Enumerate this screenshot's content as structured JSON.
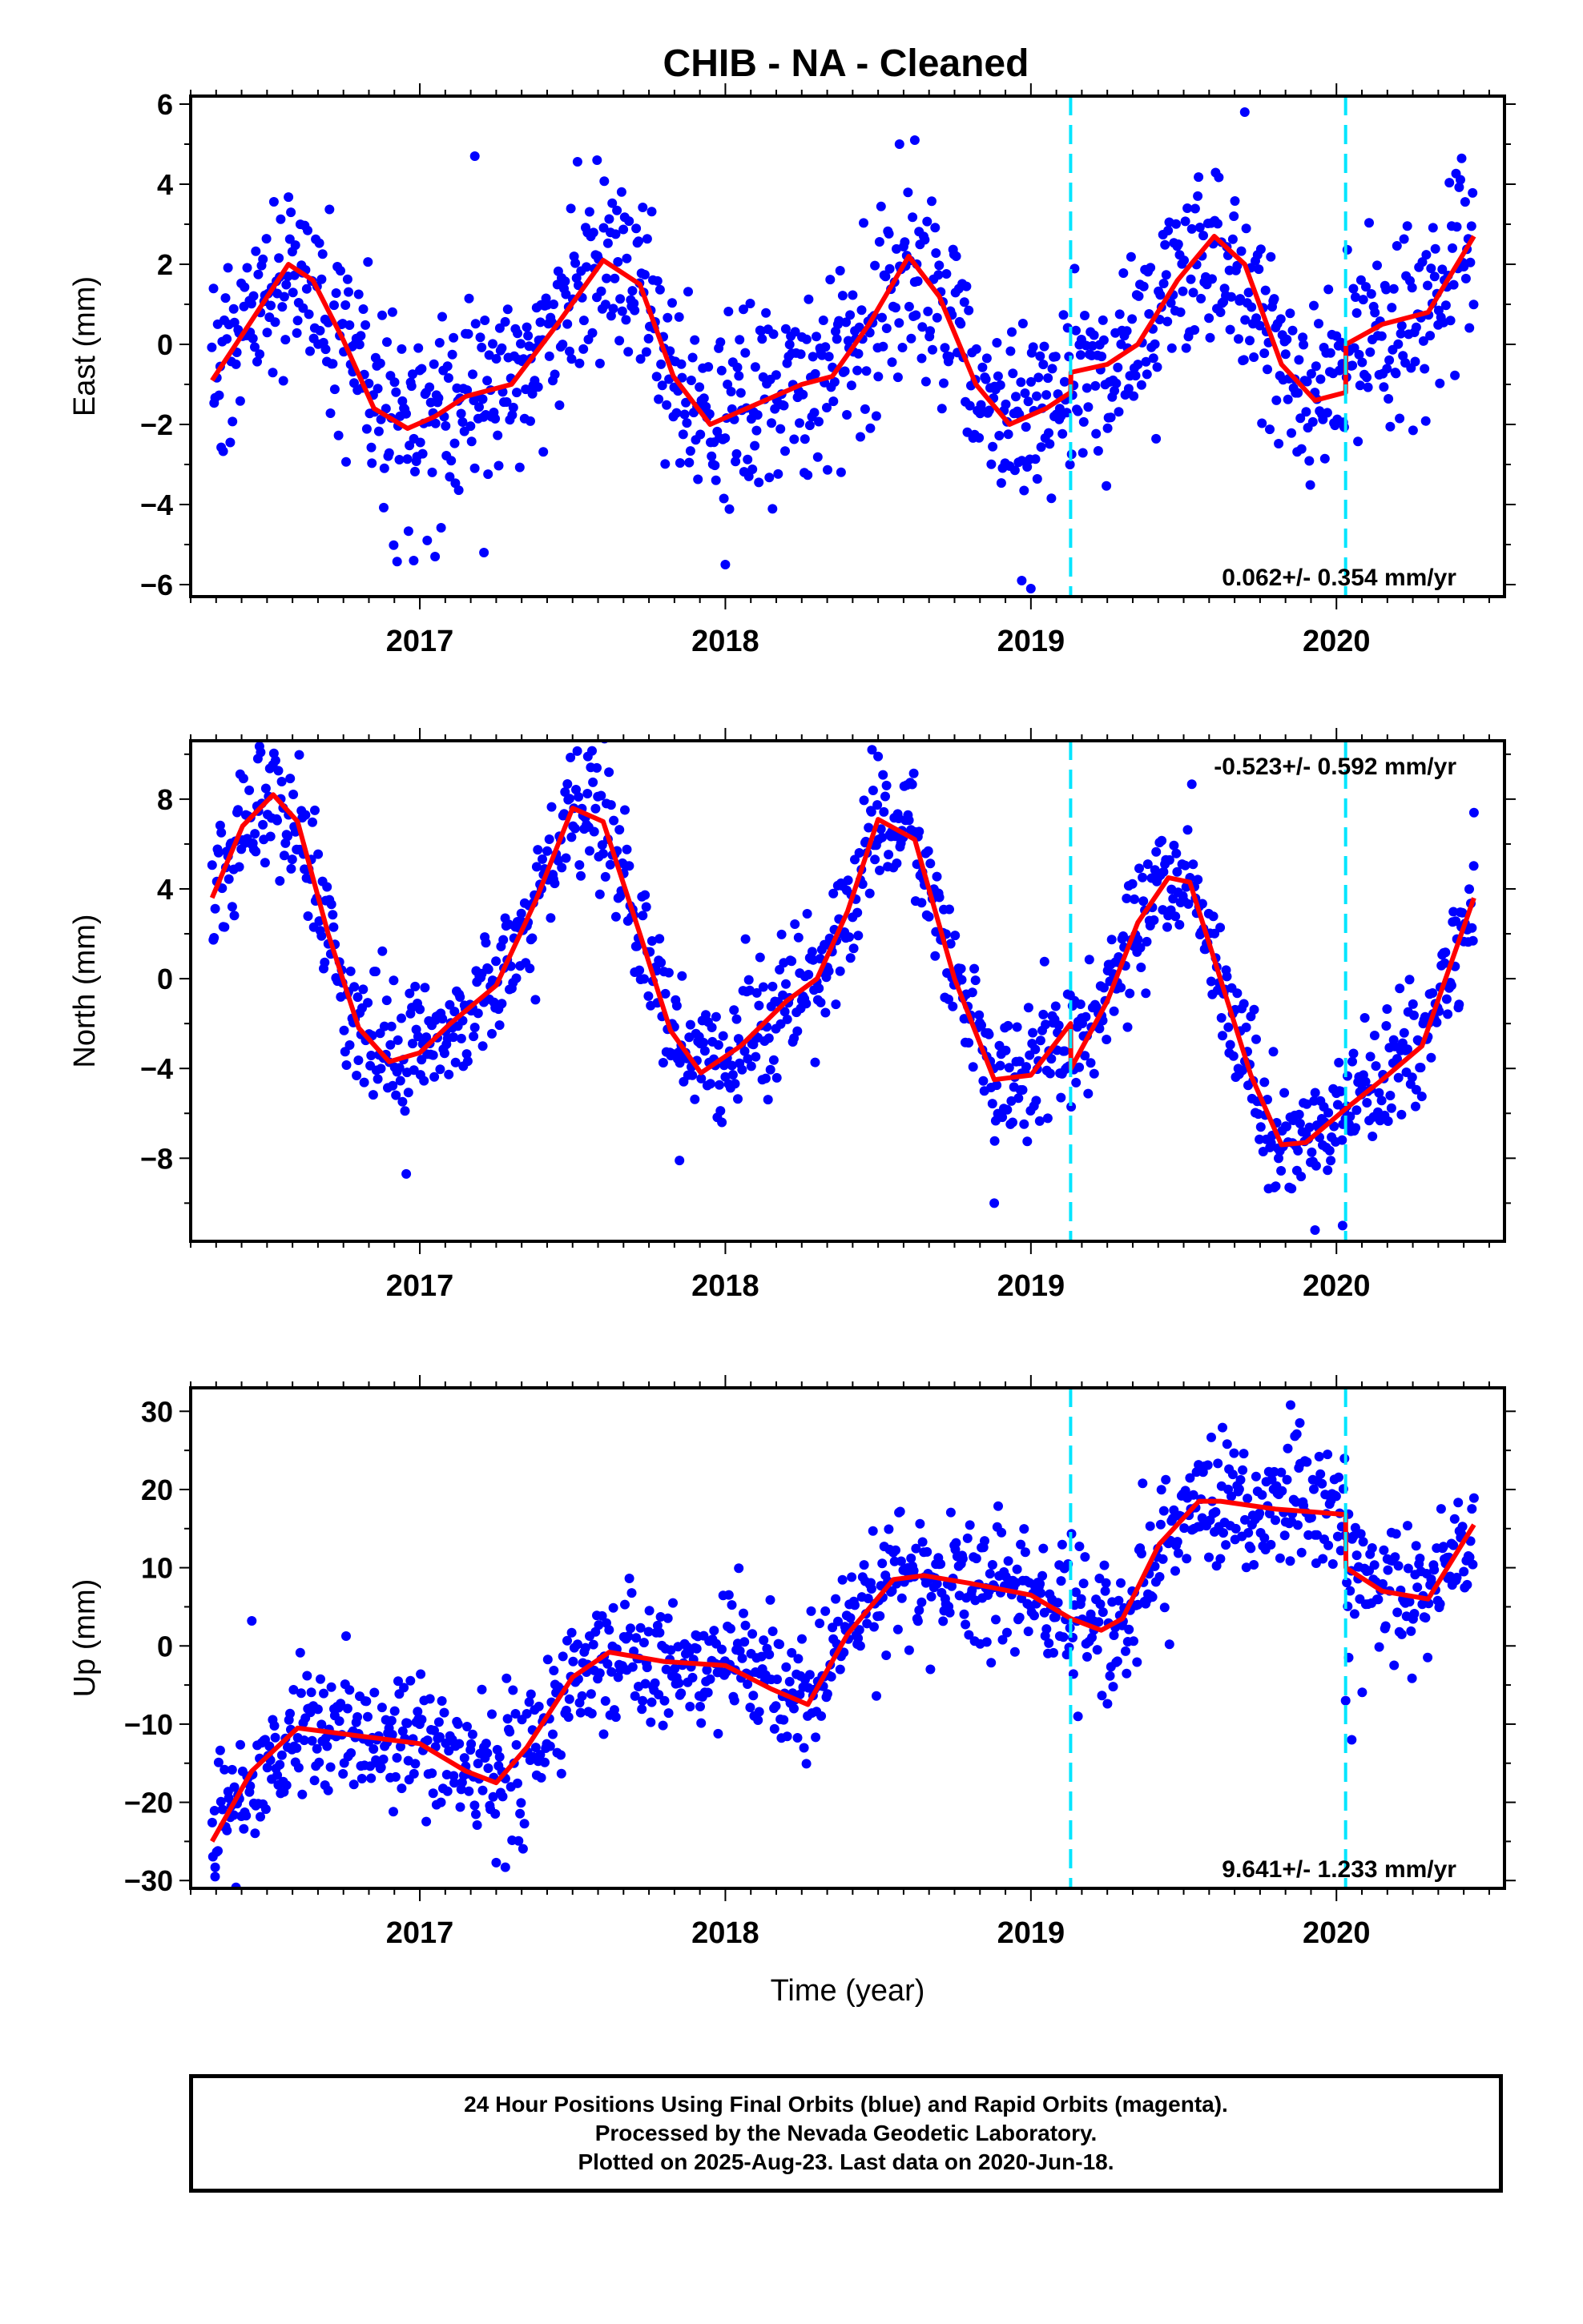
{
  "page": {
    "title": "CHIB  - NA - Cleaned"
  },
  "colors": {
    "data_points": "#0000ff",
    "model_fit": "#ff0000",
    "equipment_change": "#00e5ff",
    "frame": "#000000"
  },
  "caption": {
    "lines": [
      "24 Hour Positions Using Final Orbits (blue) and Rapid Orbits (magenta).",
      "Processed by the Nevada Geodetic Laboratory.",
      "Plotted on 2025-Aug-23. Last data on 2020-Jun-18."
    ]
  },
  "chart_data": [
    {
      "type": "scatter",
      "component": "east",
      "ylabel": "East (mm)",
      "xlabel": "",
      "xlim": [
        2016.25,
        2020.55
      ],
      "ylim": [
        -6.3,
        6.2
      ],
      "yticks": [
        6,
        4,
        2,
        0,
        -2,
        -4,
        -6
      ],
      "ytick_labels": [
        "6",
        "4",
        "2",
        "0",
        "−2",
        "−4",
        "−6"
      ],
      "xticks": [
        2017,
        2018,
        2019,
        2020
      ],
      "xtick_labels": [
        "2017",
        "2018",
        "2019",
        "2020"
      ],
      "rate_annotation": "0.062+/- 0.354 mm/yr",
      "rate_position": "bottom-right",
      "discontinuities": [
        2019.13,
        2020.03
      ],
      "fit": {
        "x": [
          2016.32,
          2016.45,
          2016.57,
          2016.65,
          2016.75,
          2016.85,
          2016.96,
          2017.05,
          2017.15,
          2017.3,
          2017.45,
          2017.6,
          2017.72,
          2017.83,
          2017.95,
          2018.1,
          2018.25,
          2018.35,
          2018.47,
          2018.6,
          2018.7,
          2018.82,
          2018.93,
          2019.05,
          2019.13,
          2019.131,
          2019.25,
          2019.35,
          2019.48,
          2019.6,
          2019.7,
          2019.82,
          2019.93,
          2020.03,
          2020.031,
          2020.15,
          2020.3,
          2020.45
        ],
        "y": [
          -0.9,
          0.6,
          2.0,
          1.6,
          0.1,
          -1.6,
          -2.1,
          -1.8,
          -1.3,
          -1.0,
          0.5,
          2.1,
          1.5,
          -0.8,
          -2.0,
          -1.5,
          -1.0,
          -0.8,
          0.5,
          2.2,
          1.2,
          -1.0,
          -2.0,
          -1.6,
          -1.2,
          -0.7,
          -0.5,
          0.0,
          1.6,
          2.7,
          2.0,
          -0.5,
          -1.4,
          -1.2,
          0.0,
          0.5,
          0.8,
          2.7
        ]
      },
      "scatter": {
        "count": 1120,
        "noise_sd": 1.2,
        "outliers": [
          [
            2016.98,
            -5.4
          ],
          [
            2017.05,
            -5.3
          ],
          [
            2017.21,
            -5.2
          ],
          [
            2017.18,
            4.7
          ],
          [
            2018.0,
            -5.5
          ],
          [
            2018.97,
            -5.9
          ],
          [
            2019.0,
            -6.1
          ],
          [
            2019.7,
            5.8
          ],
          [
            2018.57,
            5.0
          ],
          [
            2018.62,
            5.1
          ],
          [
            2017.58,
            4.6
          ]
        ]
      }
    },
    {
      "type": "scatter",
      "component": "north",
      "ylabel": "North (mm)",
      "xlabel": "",
      "xlim": [
        2016.25,
        2020.55
      ],
      "ylim": [
        -11.7,
        10.6
      ],
      "yticks": [
        8,
        4,
        0,
        -4,
        -8
      ],
      "ytick_labels": [
        "8",
        "4",
        "0",
        "−4",
        "−8"
      ],
      "xticks": [
        2017,
        2018,
        2019,
        2020
      ],
      "xtick_labels": [
        "2017",
        "2018",
        "2019",
        "2020"
      ],
      "rate_annotation": "-0.523+/- 0.592 mm/yr",
      "rate_position": "top-right",
      "discontinuities": [
        2019.13,
        2020.03
      ],
      "fit": {
        "x": [
          2016.32,
          2016.42,
          2016.52,
          2016.6,
          2016.7,
          2016.8,
          2016.9,
          2017.0,
          2017.1,
          2017.25,
          2017.38,
          2017.5,
          2017.6,
          2017.72,
          2017.82,
          2017.92,
          2018.05,
          2018.2,
          2018.3,
          2018.4,
          2018.5,
          2018.62,
          2018.75,
          2018.88,
          2019.0,
          2019.13,
          2019.131,
          2019.25,
          2019.35,
          2019.45,
          2019.52,
          2019.62,
          2019.72,
          2019.82,
          2019.9,
          2020.03,
          2020.15,
          2020.28,
          2020.45
        ],
        "y": [
          3.6,
          6.8,
          8.2,
          7.0,
          2.0,
          -2.2,
          -3.7,
          -3.3,
          -2.0,
          -0.3,
          3.5,
          7.6,
          7.0,
          2.0,
          -2.3,
          -4.2,
          -3.0,
          -1.0,
          0.0,
          3.0,
          7.1,
          6.2,
          0.0,
          -4.5,
          -4.3,
          -2.0,
          -4.0,
          -1.0,
          2.5,
          4.5,
          4.3,
          0.0,
          -4.3,
          -7.4,
          -7.3,
          -5.8,
          -4.5,
          -3.0,
          3.6
        ]
      },
      "scatter": {
        "count": 1120,
        "noise_sd": 1.45,
        "outliers": [
          [
            2017.85,
            -8.1
          ],
          [
            2018.88,
            -10.0
          ],
          [
            2019.93,
            -11.2
          ],
          [
            2020.02,
            -11.0
          ],
          [
            2016.47,
            9.8
          ],
          [
            2017.55,
            9.9
          ],
          [
            2018.48,
            10.2
          ],
          [
            2018.5,
            9.9
          ],
          [
            2020.45,
            7.4
          ]
        ]
      }
    },
    {
      "type": "scatter",
      "component": "up",
      "ylabel": "Up (mm)",
      "xlabel": "Time (year)",
      "xlim": [
        2016.25,
        2020.55
      ],
      "ylim": [
        -31,
        33
      ],
      "yticks": [
        30,
        20,
        10,
        0,
        -10,
        -20,
        -30
      ],
      "ytick_labels": [
        "30",
        "20",
        "10",
        "0",
        "−10",
        "−20",
        "−30"
      ],
      "xticks": [
        2017,
        2018,
        2019,
        2020
      ],
      "xtick_labels": [
        "2017",
        "2018",
        "2019",
        "2020"
      ],
      "rate_annotation": "9.641+/- 1.233 mm/yr",
      "rate_position": "bottom-right",
      "discontinuities": [
        2019.13,
        2020.03
      ],
      "fit": {
        "x": [
          2016.32,
          2016.45,
          2016.6,
          2016.8,
          2017.0,
          2017.15,
          2017.25,
          2017.35,
          2017.5,
          2017.62,
          2017.8,
          2018.0,
          2018.15,
          2018.27,
          2018.4,
          2018.55,
          2018.65,
          2018.8,
          2019.0,
          2019.13,
          2019.23,
          2019.3,
          2019.42,
          2019.55,
          2019.62,
          2019.8,
          2020.03,
          2020.031,
          2020.15,
          2020.3,
          2020.45
        ],
        "y": [
          -25,
          -16,
          -10.5,
          -11.5,
          -12.5,
          -16,
          -17.5,
          -13,
          -4,
          -0.8,
          -2,
          -2.5,
          -5.5,
          -7.5,
          1.5,
          8.5,
          9.0,
          8.0,
          6.5,
          3.5,
          2.0,
          3.5,
          13,
          18.5,
          18.5,
          17.5,
          16.8,
          10.0,
          7.0,
          6.0,
          15.5
        ]
      },
      "scatter": {
        "count": 1120,
        "noise_sd": 4.2,
        "outliers": [
          [
            2016.45,
            3.2
          ],
          [
            2016.33,
            -29.5
          ],
          [
            2017.28,
            -28.3
          ],
          [
            2019.85,
            30.8
          ],
          [
            2019.88,
            28.5
          ],
          [
            2020.05,
            -12.0
          ],
          [
            2020.03,
            -7.0
          ],
          [
            2020.04,
            -1.5
          ]
        ]
      }
    }
  ]
}
